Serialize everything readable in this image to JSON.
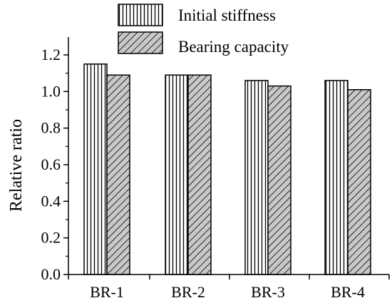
{
  "chart_data": {
    "type": "bar",
    "categories": [
      "BR-1",
      "BR-2",
      "BR-3",
      "BR-4"
    ],
    "series": [
      {
        "name": "Initial stiffness",
        "values": [
          1.15,
          1.09,
          1.06,
          1.06
        ],
        "pattern": "vertical-lines"
      },
      {
        "name": "Bearing capacity",
        "values": [
          1.09,
          1.09,
          1.03,
          1.01
        ],
        "pattern": "diagonal-hatch"
      }
    ],
    "xlabel": "",
    "ylabel": "Relative ratio",
    "ylim": [
      0.0,
      1.2
    ],
    "yticks": [
      "0.0",
      "0.2",
      "0.4",
      "0.6",
      "0.8",
      "1.0",
      "1.2"
    ],
    "grid": false,
    "legend_position": "top-center",
    "colors": {
      "bar_fill": "#ffffff",
      "bar_stroke": "#000000",
      "hatch_fill": "#c8c8c8",
      "axis": "#000000"
    }
  }
}
